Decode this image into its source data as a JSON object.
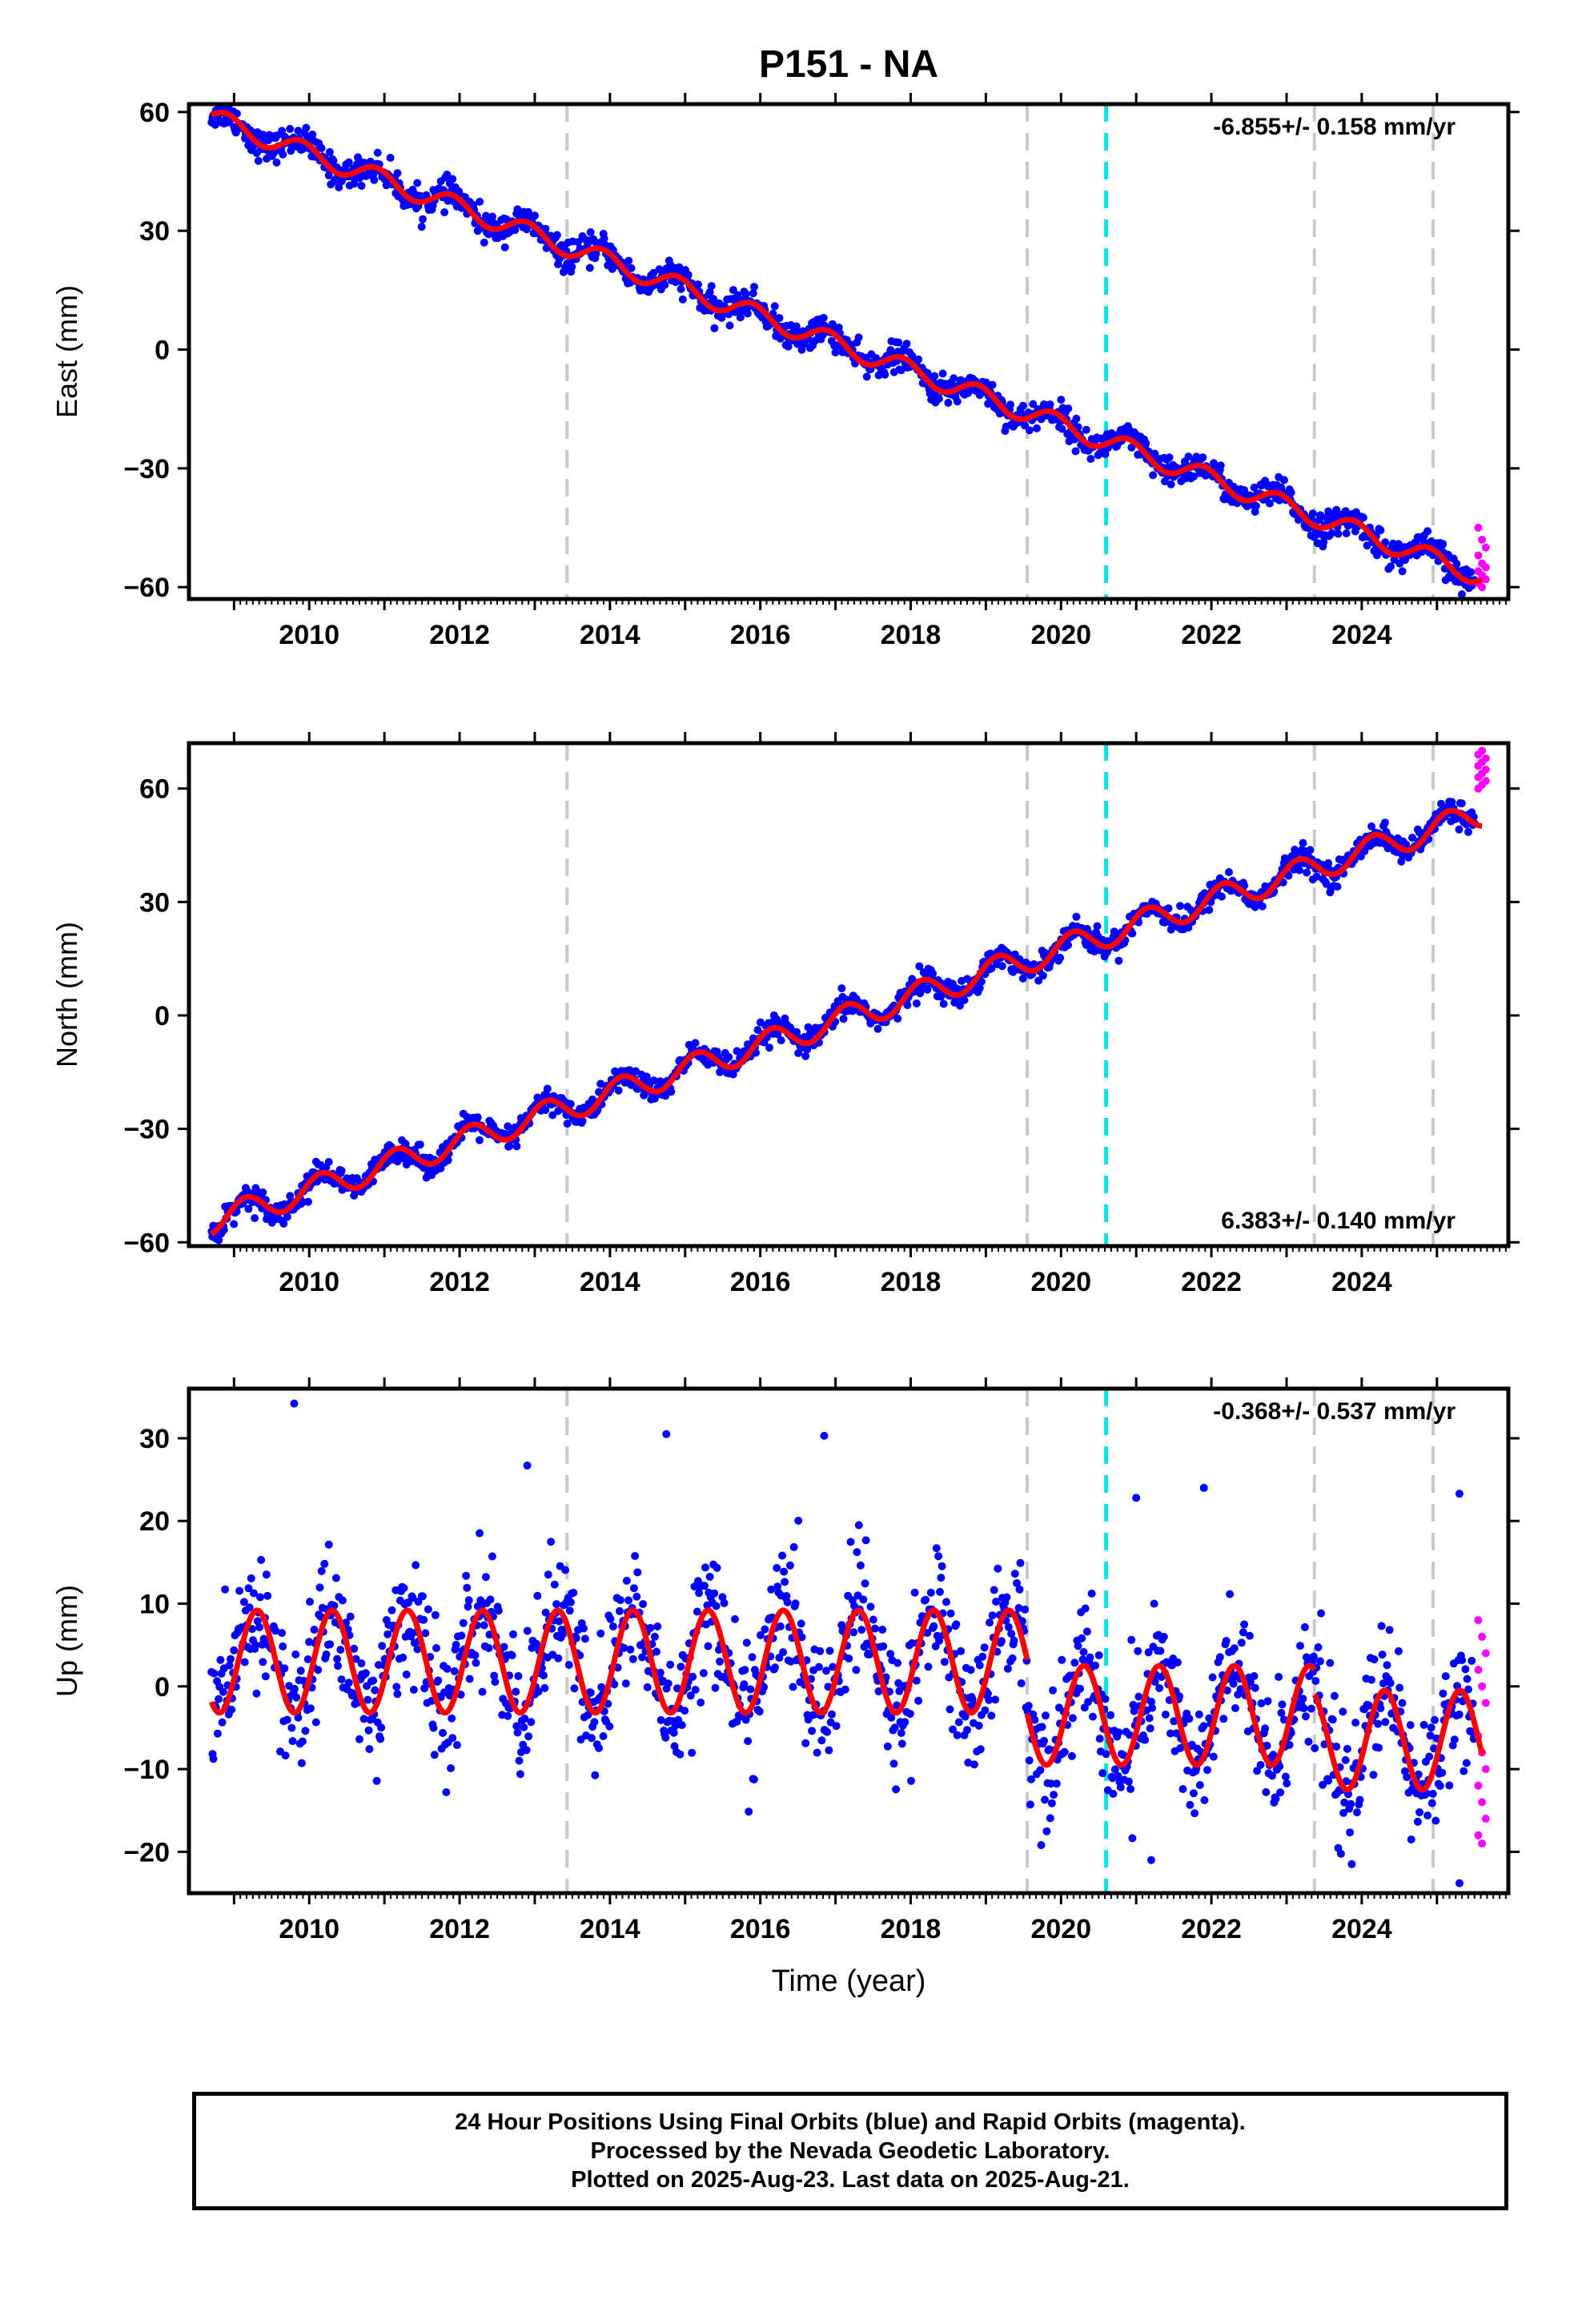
{
  "title": "P151 - NA",
  "footer": {
    "line1": "24 Hour Positions Using Final Orbits (blue) and Rapid Orbits (magenta).",
    "line2": "Processed by the Nevada Geodetic Laboratory.",
    "line3": "Plotted on 2025-Aug-23. Last data on 2025-Aug-21."
  },
  "colors": {
    "final_orbits": "#0000ff",
    "rapid_orbits": "#ff00ff",
    "model_fit": "#ff0000",
    "event_line": "#c8c8c8",
    "highlight_event_line": "#00e5e5"
  },
  "chart_data": [
    {
      "type": "scatter",
      "ylabel": "East (mm)",
      "xlabel": "",
      "xlim": [
        2008.4,
        2025.95
      ],
      "ylim": [
        -63,
        62
      ],
      "xticks": [
        2010,
        2012,
        2014,
        2016,
        2018,
        2020,
        2022,
        2024
      ],
      "yticks": [
        -60,
        -30,
        0,
        30,
        60
      ],
      "rate_label": "-6.855+/- 0.158 mm/yr",
      "rate_position": "top-right",
      "event_lines": [
        2013.43,
        2019.55,
        2023.37,
        2024.95
      ],
      "highlight_event_lines": [
        2020.6
      ],
      "model": {
        "start_year": 2008.7,
        "start_value": 58.5,
        "rate": -6.855,
        "annual_amplitude": 2.5,
        "annual_phase": 2.2
      },
      "final_scatter_mm": 1.8,
      "final_range": [
        2008.7,
        2025.5
      ],
      "rapid_range": [
        2025.55,
        2025.65
      ],
      "rapid_values": [
        -45,
        -48,
        -50,
        -52,
        -54,
        -55,
        -56,
        -57,
        -58,
        -59,
        -60
      ]
    },
    {
      "type": "scatter",
      "ylabel": "North (mm)",
      "xlabel": "",
      "xlim": [
        2008.4,
        2025.95
      ],
      "ylim": [
        -61,
        72
      ],
      "xticks": [
        2010,
        2012,
        2014,
        2016,
        2018,
        2020,
        2022,
        2024
      ],
      "yticks": [
        -60,
        -30,
        0,
        30,
        60
      ],
      "rate_label": "6.383+/- 0.140 mm/yr",
      "rate_position": "bottom-right",
      "event_lines": [
        2013.43,
        2019.55,
        2023.37,
        2024.95
      ],
      "highlight_event_lines": [
        2020.6
      ],
      "model": {
        "start_year": 2008.7,
        "start_value": -54.5,
        "rate": 6.383,
        "annual_amplitude": 3.5,
        "annual_phase": 0.6
      },
      "final_scatter_mm": 1.6,
      "final_range": [
        2008.7,
        2025.5
      ],
      "rapid_range": [
        2025.55,
        2025.65
      ],
      "rapid_values": [
        60,
        61,
        62,
        63,
        64,
        65,
        66,
        67,
        68,
        69,
        70
      ]
    },
    {
      "type": "scatter",
      "ylabel": "Up (mm)",
      "xlabel": "Time (year)",
      "xlim": [
        2008.4,
        2025.95
      ],
      "ylim": [
        -25,
        36
      ],
      "xticks": [
        2010,
        2012,
        2014,
        2016,
        2018,
        2020,
        2022,
        2024
      ],
      "yticks": [
        -20,
        -10,
        0,
        10,
        20,
        30
      ],
      "rate_label": "-0.368+/- 0.537 mm/yr",
      "rate_position": "top-right",
      "event_lines": [
        2013.43,
        2019.55,
        2023.37,
        2024.95
      ],
      "highlight_event_lines": [
        2020.6
      ],
      "model": {
        "segments": [
          {
            "from": 2008.7,
            "to": 2019.55,
            "offset": 3.0,
            "rate": 0.0,
            "annual_amplitude": 6.2,
            "annual_phase": -0.35
          },
          {
            "from": 2019.55,
            "to": 2023.37,
            "offset": -3.5,
            "rate": 0.0,
            "annual_amplitude": 6.0,
            "annual_phase": -0.35
          },
          {
            "from": 2023.37,
            "to": 2025.6,
            "offset": -6.5,
            "rate": 0.0,
            "annual_amplitude": 6.0,
            "annual_phase": -0.35
          }
        ]
      },
      "final_scatter_mm": 4.0,
      "final_range": [
        2008.7,
        2025.5
      ],
      "outliers": [
        [
          2009.8,
          34.2
        ],
        [
          2014.75,
          30.5
        ],
        [
          2016.85,
          30.3
        ],
        [
          2012.9,
          26.7
        ],
        [
          2021.0,
          22.8
        ],
        [
          2021.9,
          24.0
        ],
        [
          2025.3,
          23.3
        ],
        [
          2025.3,
          -23.8
        ],
        [
          2021.2,
          -21
        ]
      ],
      "rapid_range": [
        2025.55,
        2025.65
      ],
      "rapid_values": [
        8,
        6,
        4,
        2,
        0,
        -2,
        -6,
        -8,
        -10,
        -12,
        -14,
        -16,
        -18,
        -19
      ]
    }
  ]
}
